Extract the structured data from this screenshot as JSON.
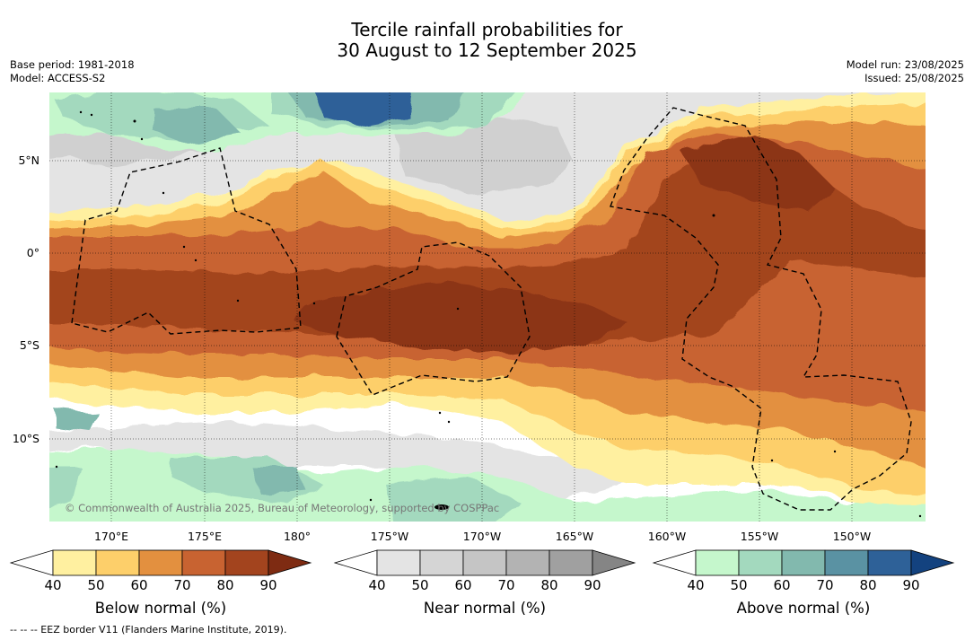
{
  "title_line1": "Tercile rainfall probabilities for",
  "title_line2": "30 August to 12 September 2025",
  "base_period": "Base period: 1981-2018",
  "model": "Model: ACCESS-S2",
  "model_run": "Model run: 23/08/2025",
  "issued": "Issued: 25/08/2025",
  "copyright": "© Commonwealth of Australia 2025, Bureau of Meteorology, supported by COSPPac",
  "footnote": "-- -- -- EEZ border V11 (Flanders Marine Institute, 2019).",
  "lat_labels": [
    "5°N",
    "0°",
    "5°S",
    "10°S"
  ],
  "lon_labels": [
    "170°E",
    "175°E",
    "180°",
    "175°W",
    "170°W",
    "165°W",
    "160°W",
    "155°W",
    "150°W"
  ],
  "colorbars": [
    {
      "title": "Below normal (%)",
      "ticks": [
        "40",
        "50",
        "60",
        "70",
        "80",
        "90"
      ],
      "colors": [
        "#ffffff",
        "#fff0a0",
        "#fdcf6a",
        "#e3903f",
        "#c86331",
        "#a3441e",
        "#7e2b12"
      ]
    },
    {
      "title": "Near normal (%)",
      "ticks": [
        "40",
        "50",
        "60",
        "70",
        "80",
        "90"
      ],
      "colors": [
        "#ffffff",
        "#e4e4e4",
        "#d5d5d5",
        "#c5c5c5",
        "#b3b3b3",
        "#a0a0a0",
        "#858585"
      ]
    },
    {
      "title": "Above normal (%)",
      "ticks": [
        "40",
        "50",
        "60",
        "70",
        "80",
        "90"
      ],
      "colors": [
        "#ffffff",
        "#c5f7cc",
        "#a3d9be",
        "#82b9ae",
        "#5a92a3",
        "#2e6198",
        "#13427f"
      ]
    }
  ],
  "map_colors": {
    "bn_50": "#fff0a0",
    "bn_60": "#fdcf6a",
    "bn_70": "#e3903f",
    "bn_80": "#c86331",
    "bn_90": "#a3441e",
    "bn_max": "#8c3417",
    "nn_50": "#e4e4e4",
    "nn_60": "#d0d0d0",
    "nn_80": "#a6a6a6",
    "an_50": "#c5f7cc",
    "an_60": "#a3d9be",
    "an_70": "#82b9ae",
    "an_80": "#5a92a3",
    "an_90": "#2e6198"
  }
}
